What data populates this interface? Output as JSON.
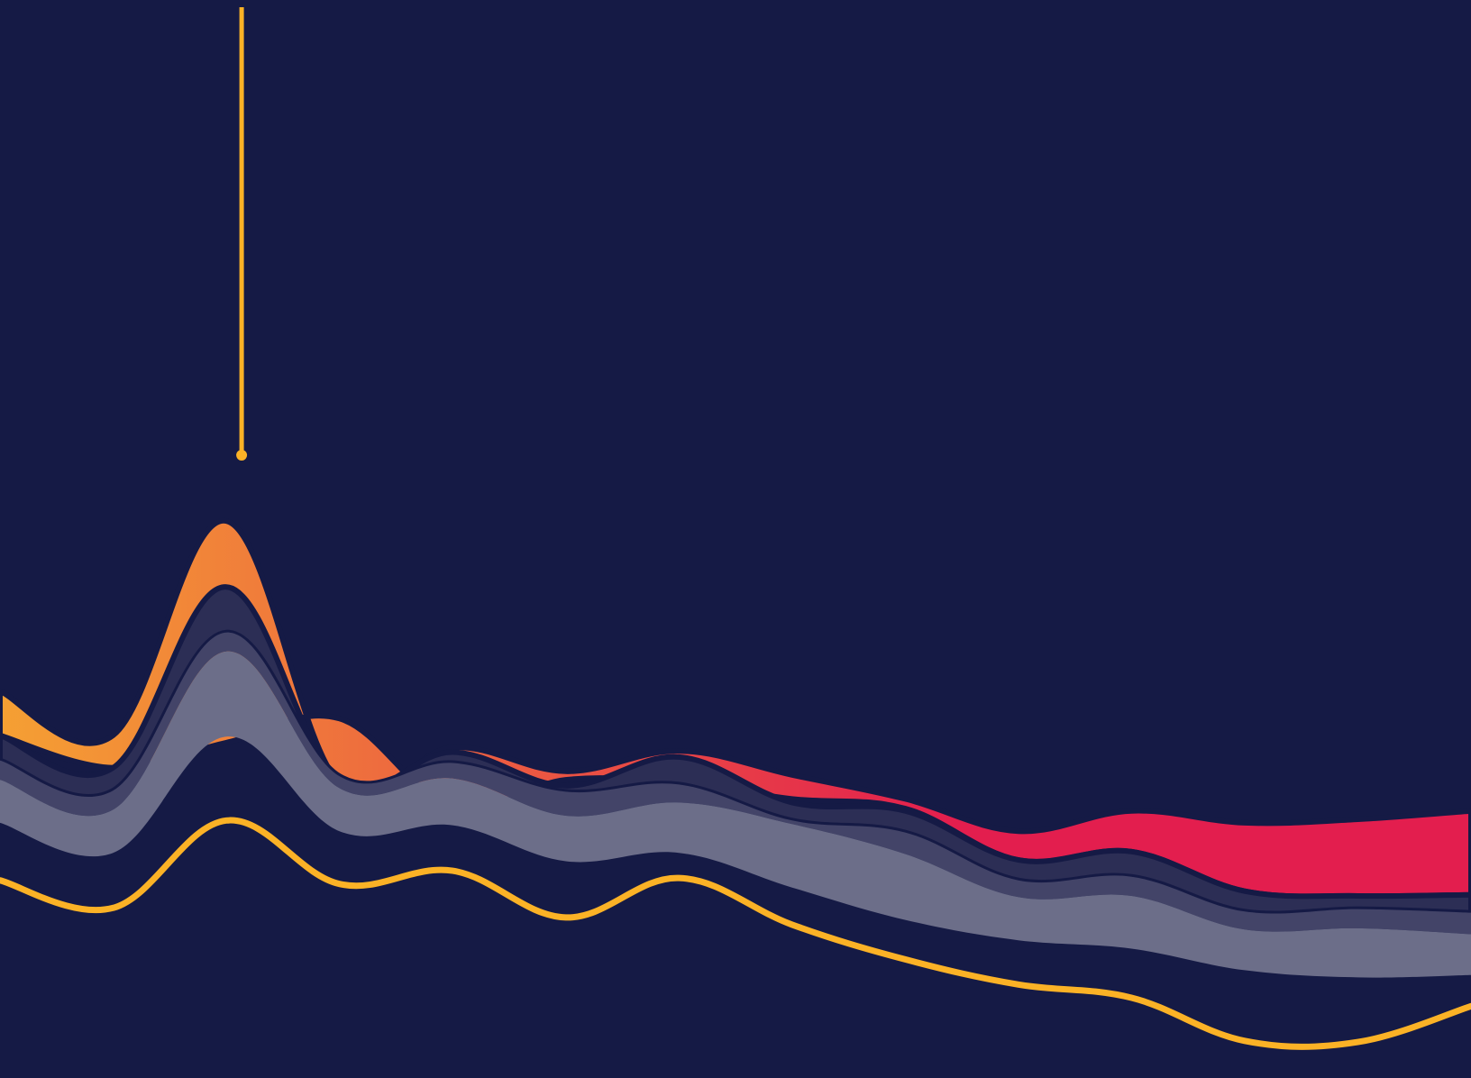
{
  "colors": {
    "background": "#151a45",
    "band_gradient_start": "#f5a033",
    "band_gradient_end": "#e31e4e",
    "line": "#fbb226",
    "pin": "#fbb226",
    "band_dark": "#2c2e55",
    "band_mid": "#434468",
    "band_light": "#6c6e89"
  },
  "chart_data": {
    "type": "area",
    "title": "",
    "xlabel": "",
    "ylabel": "",
    "axes_visible": false,
    "grid": false,
    "legend": "none",
    "x": [
      0,
      1,
      2,
      3,
      4,
      5,
      6,
      7,
      8,
      9,
      10,
      11,
      12,
      13
    ],
    "series": [
      {
        "id": "band-gradient",
        "style": "gradient-band",
        "top": [
          22.3,
          18.6,
          36.5,
          14.6,
          17.6,
          15.6,
          17.3,
          15.3,
          13.3,
          10.6,
          12.3,
          11.3,
          11.6,
          12.3
        ],
        "bottom": [
          18.6,
          15.9,
          18.0,
          20.0,
          12.6,
          14.9,
          14.6,
          13.3,
          12.5,
          8.2,
          8.9,
          5.6,
          5.2,
          5.3
        ]
      },
      {
        "id": "band-dark",
        "style": "dark",
        "top": [
          18.6,
          15.9,
          31.0,
          14.8,
          17.2,
          14.4,
          16.8,
          13.0,
          12.3,
          8.2,
          8.9,
          5.6,
          5.2,
          5.3
        ],
        "bottom": [
          16.5,
          14.0,
          27.2,
          15.2,
          16.3,
          13.9,
          14.5,
          11.5,
          10.5,
          6.5,
          6.8,
          3.9,
          4.1,
          3.8
        ]
      },
      {
        "id": "band-mid",
        "style": "mid",
        "top": [
          16.5,
          14.0,
          27.2,
          15.2,
          16.3,
          13.9,
          14.5,
          11.5,
          10.5,
          6.5,
          6.8,
          3.9,
          4.1,
          3.8
        ],
        "bottom": [
          14.9,
          12.4,
          25.6,
          14.2,
          15.0,
          11.9,
          13.0,
          11.2,
          8.7,
          5.1,
          5.2,
          2.4,
          2.5,
          2.0
        ]
      },
      {
        "id": "band-light",
        "style": "light",
        "top": [
          14.9,
          12.4,
          25.6,
          14.2,
          15.0,
          11.9,
          13.0,
          11.2,
          8.7,
          5.1,
          5.2,
          2.4,
          2.5,
          2.0
        ],
        "bottom": [
          11.3,
          8.8,
          18.5,
          10.6,
          11.1,
          8.1,
          8.8,
          5.9,
          3.2,
          1.5,
          0.8,
          -1.0,
          -1.6,
          -1.4
        ]
      },
      {
        "id": "line-gold",
        "style": "line",
        "values": [
          6.5,
          4.2,
          11.5,
          6.2,
          7.3,
          3.4,
          6.7,
          2.8,
          -0.1,
          -2.2,
          -3.3,
          -6.9,
          -7.0,
          -4.0
        ]
      }
    ],
    "highlight_pin": {
      "x": 2,
      "value": 42
    },
    "ylim": [
      -10,
      80
    ]
  }
}
